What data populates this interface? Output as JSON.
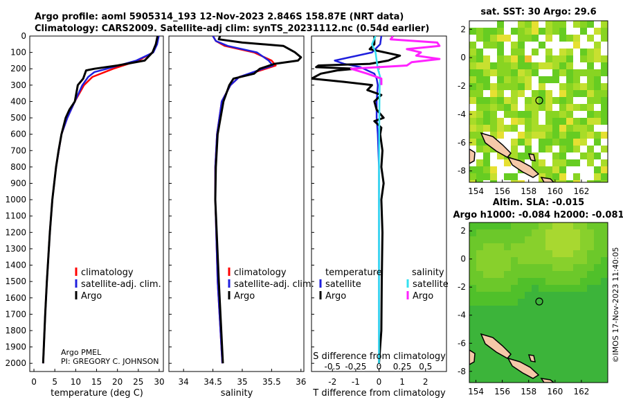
{
  "header": {
    "line1": "Argo profile: aoml 5905314_193 12-Nov-2023 2.846S 158.87E (NRT data)",
    "line2": "Climatology: CARS2009. Satellite-adj clim: synTS_20231112.nc (0.54d earlier)"
  },
  "legend_main": [
    "climatology",
    "satellite-adj. clim.",
    "Argo"
  ],
  "legend_diff": {
    "temp_title": "temperature",
    "sal_title": "salinity",
    "temp_items": [
      "satellite",
      "Argo"
    ],
    "sal_items": [
      "satellite",
      "Argo"
    ]
  },
  "source_note": {
    "line1": "Argo PMEL",
    "line2": "PI: GREGORY C. JOHNSON"
  },
  "maps": {
    "sst_title": "sat. SST: 30 Argo: 29.6",
    "sla_title1": "Altim. SLA: -0.015",
    "sla_title2": "Argo h1000: -0.084 h2000: -0.081",
    "watermark": "©IMOS 17-Nov-2023 11:40:05",
    "x_ticks": [
      "154",
      "156",
      "158",
      "160",
      "162"
    ],
    "y_ticks": [
      "2",
      "0",
      "-2",
      "-4",
      "-6",
      "-8"
    ]
  },
  "colors": {
    "climatology": "#ff0000",
    "satellite": "#1f1fdd",
    "argo": "#000000",
    "sat_salinity_diff": "#33e0f0",
    "argo_salinity_diff": "#ff22ff",
    "land": "#f5c8a8"
  },
  "chart_data": [
    {
      "type": "line",
      "name": "temperature",
      "xlabel": "temperature (deg C)",
      "ylabel": "",
      "xlim": [
        -1,
        31
      ],
      "ylim": [
        2050,
        0
      ],
      "x_ticks": [
        0,
        5,
        10,
        15,
        20,
        25,
        30
      ],
      "y_ticks": [
        0,
        100,
        200,
        300,
        400,
        500,
        600,
        700,
        800,
        900,
        1000,
        1100,
        1200,
        1300,
        1400,
        1500,
        1600,
        1700,
        1800,
        1900,
        2000
      ],
      "series": [
        {
          "name": "climatology",
          "depth": [
            0,
            50,
            100,
            150,
            200,
            250,
            300,
            400,
            500,
            600,
            800,
            1000,
            1200,
            1500,
            1700,
            2000
          ],
          "values": [
            29.8,
            29.4,
            28.5,
            25,
            19,
            14,
            12,
            9.8,
            8,
            6.6,
            5.3,
            4.4,
            3.8,
            3.1,
            2.7,
            2.2
          ]
        },
        {
          "name": "satellite-adj. clim.",
          "depth": [
            0,
            50,
            100,
            150,
            200,
            220,
            250,
            300,
            400,
            500,
            600,
            800,
            1000,
            1200,
            1500,
            1700,
            2000
          ],
          "values": [
            29.9,
            29.5,
            28.6,
            24.5,
            17.5,
            14.5,
            13,
            11.6,
            9.8,
            8,
            6.6,
            5.3,
            4.4,
            3.8,
            3.1,
            2.7,
            2.2
          ]
        },
        {
          "name": "Argo",
          "depth": [
            0,
            50,
            100,
            150,
            180,
            200,
            210,
            260,
            300,
            400,
            450,
            500,
            600,
            700,
            800,
            1000,
            1200,
            1500,
            1700,
            2000
          ],
          "values": [
            29.6,
            29.2,
            28.4,
            26.5,
            20,
            14.5,
            12.5,
            11.8,
            10.5,
            9.8,
            8.5,
            7.6,
            6.6,
            5.9,
            5.3,
            4.4,
            3.8,
            3.1,
            2.7,
            2.2
          ]
        }
      ]
    },
    {
      "type": "line",
      "name": "salinity",
      "xlabel": "salinity",
      "ylabel": "",
      "xlim": [
        33.75,
        36.05
      ],
      "ylim": [
        2050,
        0
      ],
      "x_ticks": [
        34,
        34.5,
        35,
        35.5,
        36
      ],
      "tick_labels": [
        "34",
        "34.5",
        "35",
        "35.5",
        "36"
      ],
      "series": [
        {
          "name": "climatology",
          "depth": [
            0,
            30,
            60,
            100,
            150,
            180,
            200,
            250,
            300,
            400,
            600,
            800,
            1000,
            1500,
            2000
          ],
          "values": [
            34.5,
            34.55,
            34.7,
            35.2,
            35.5,
            35.57,
            35.4,
            34.95,
            34.8,
            34.65,
            34.57,
            34.54,
            34.54,
            34.58,
            34.66
          ]
        },
        {
          "name": "satellite-adj. clim.",
          "depth": [
            0,
            30,
            60,
            100,
            150,
            180,
            200,
            250,
            300,
            400,
            600,
            800,
            1000,
            1500,
            2000
          ],
          "values": [
            34.5,
            34.55,
            34.75,
            35.25,
            35.45,
            35.52,
            35.35,
            34.95,
            34.8,
            34.65,
            34.57,
            34.54,
            34.54,
            34.58,
            34.66
          ]
        },
        {
          "name": "Argo",
          "depth": [
            0,
            20,
            40,
            60,
            100,
            130,
            150,
            170,
            200,
            230,
            260,
            300,
            400,
            600,
            800,
            1000,
            1500,
            2000
          ],
          "values": [
            34.62,
            34.6,
            35.0,
            35.7,
            35.9,
            36.0,
            35.95,
            35.55,
            35.3,
            35.2,
            34.85,
            34.78,
            34.68,
            34.58,
            34.55,
            34.54,
            34.6,
            34.67
          ]
        }
      ]
    },
    {
      "type": "line",
      "name": "difference",
      "xlabel": "T difference from climatology",
      "secondary_xlabel": "S difference from climatology",
      "xlim": [
        -2.9,
        2.9
      ],
      "ylim": [
        2050,
        0
      ],
      "x_ticks": [
        -2,
        -1,
        0,
        1,
        2
      ],
      "tick_labels": [
        "-2",
        "-1",
        "0",
        "1",
        "2"
      ],
      "secondary_tick_labels": [
        "-0.5",
        "-0.25",
        "0",
        "0.25",
        "0.5"
      ],
      "series": [
        {
          "name": "temperature satellite",
          "depth": [
            0,
            50,
            100,
            150,
            170,
            190,
            210,
            230,
            260,
            300,
            400,
            500,
            600,
            800,
            1000,
            1500,
            2000
          ],
          "values": [
            0.1,
            0.05,
            -0.3,
            -1.9,
            -1.5,
            -0.8,
            -0.5,
            -0.2,
            -0.1,
            -0.05,
            -0.1,
            -0.1,
            -0.05,
            0,
            0,
            0,
            0
          ]
        },
        {
          "name": "temperature Argo",
          "depth": [
            0,
            50,
            80,
            120,
            150,
            170,
            180,
            190,
            200,
            210,
            230,
            260,
            280,
            300,
            330,
            360,
            400,
            450,
            500,
            520,
            560,
            600,
            700,
            800,
            900,
            1000,
            1200,
            1500,
            1800,
            2000
          ],
          "values": [
            -0.2,
            -0.2,
            -0.4,
            0.9,
            0.4,
            -0.4,
            -2.6,
            -2.7,
            -1.0,
            -1.8,
            -2.5,
            -2.9,
            -1.5,
            -0.3,
            -0.5,
            0.1,
            -0.2,
            -0.1,
            0.2,
            -0.2,
            0.1,
            0.05,
            0.15,
            0.1,
            0.2,
            0.1,
            0.15,
            0.12,
            0.1,
            0.0
          ]
        },
        {
          "name": "salinity satellite",
          "depth": [
            0,
            50,
            100,
            150,
            200,
            250,
            300,
            400,
            600,
            800,
            1000,
            1500,
            2000
          ],
          "values": [
            -0.15,
            -0.3,
            -0.15,
            -0.1,
            -0.05,
            0.05,
            0.03,
            0.02,
            0.01,
            0,
            0,
            0,
            0
          ]
        },
        {
          "name": "salinity Argo",
          "depth": [
            0,
            20,
            40,
            60,
            80,
            100,
            120,
            140,
            160,
            180,
            200,
            230,
            260,
            300
          ],
          "values": [
            0.6,
            0.5,
            2.5,
            2.6,
            1.2,
            1.8,
            1.6,
            2.6,
            1.4,
            1.2,
            -1.2,
            -0.5,
            0.1,
            0.1
          ]
        }
      ]
    },
    {
      "type": "heatmap",
      "name": "sat SST map",
      "title": "sat. SST: 30 Argo: 29.6",
      "xlim": [
        153.5,
        164
      ],
      "ylim": [
        -8.8,
        2.6
      ],
      "x_ticks": [
        154,
        156,
        158,
        160,
        162
      ],
      "y_ticks": [
        2,
        0,
        -2,
        -4,
        -6,
        -8
      ],
      "argo_position": [
        158.87,
        -2.846
      ]
    },
    {
      "type": "heatmap",
      "name": "altimetry SLA map",
      "title": "Altim. SLA: -0.015",
      "xlim": [
        153.5,
        164
      ],
      "ylim": [
        -8.8,
        2.6
      ],
      "x_ticks": [
        154,
        156,
        158,
        160,
        162
      ],
      "y_ticks": [
        2,
        0,
        -2,
        -4,
        -6,
        -8
      ],
      "argo_position": [
        158.87,
        -2.846
      ]
    }
  ]
}
